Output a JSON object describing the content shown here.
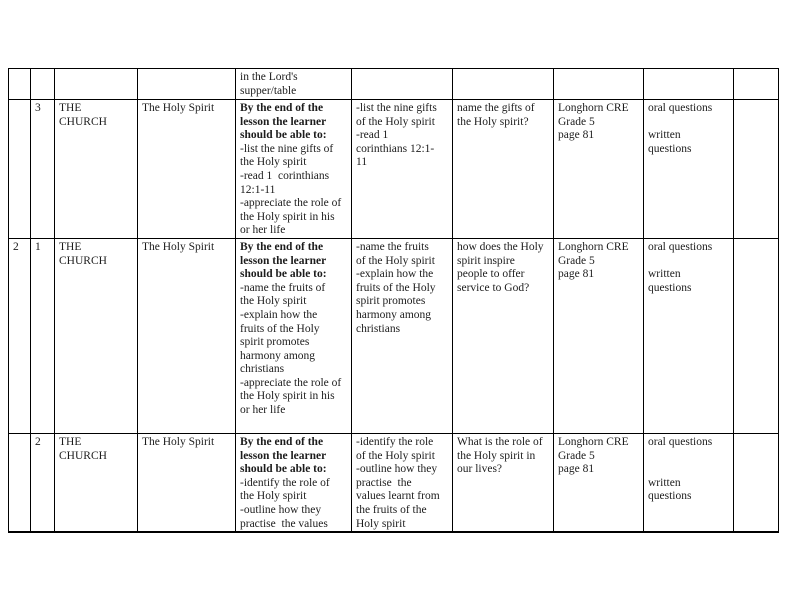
{
  "table": {
    "border_color": "#000000",
    "text_color": "#1c1c1c",
    "background": "#ffffff",
    "rows": [
      {
        "week": "",
        "lesson": "",
        "topic": "",
        "subtopic": "",
        "objectives_bold": "",
        "objectives": "in the Lord's\nsupper/table",
        "activities": "",
        "question": "",
        "references": "",
        "assessment": "",
        "remarks": ""
      },
      {
        "week": "",
        "lesson": "3",
        "topic": "THE\nCHURCH",
        "subtopic": "The Holy Spirit",
        "objectives_bold": "By the end of the\nlesson the learner\nshould be able to:",
        "objectives": "-list the nine gifts of\nthe Holy spirit\n-read 1  corinthians\n12:1-11\n-appreciate the role of\nthe Holy spirit in his\nor her life",
        "activities": "-list the nine gifts\nof the Holy spirit\n-read 1\ncorinthians 12:1-\n11",
        "question": "name the gifts of\nthe Holy spirit?",
        "references": "Longhorn CRE\nGrade 5\npage 81",
        "assessment": "oral questions\n\nwritten\nquestions",
        "remarks": ""
      },
      {
        "week": "2",
        "lesson": "1",
        "topic": "THE\nCHURCH",
        "subtopic": "The Holy Spirit",
        "objectives_bold": "By the end of the\nlesson the learner\nshould be able to:",
        "objectives": "-name the fruits of\nthe Holy spirit\n-explain how the\nfruits of the Holy\nspirit promotes\nharmony among\nchristians\n-appreciate the role of\nthe Holy spirit in his\nor her life",
        "activities": "-name the fruits\nof the Holy spirit\n-explain how the\nfruits of the Holy\nspirit promotes\nharmony among\nchristians",
        "question": "how does the Holy\nspirit inspire\npeople to offer\nservice to God?",
        "references": "Longhorn CRE\nGrade 5\npage 81",
        "assessment": "oral questions\n\nwritten\nquestions",
        "remarks": ""
      },
      {
        "week": "",
        "lesson": "2",
        "topic": "THE\nCHURCH",
        "subtopic": "The Holy Spirit",
        "objectives_bold": "By the end of the\nlesson the learner\nshould be able to:",
        "objectives": "-identify the role of\nthe Holy spirit\n-outline how they\npractise  the values",
        "activities": "-identify the role\nof the Holy spirit\n-outline how they\npractise  the\nvalues learnt from\nthe fruits of the\nHoly spirit",
        "question": "What is the role of\nthe Holy spirit in\nour lives?",
        "references": "Longhorn CRE\nGrade 5\npage 81",
        "assessment": "oral questions\n\n\nwritten\nquestions",
        "remarks": ""
      }
    ]
  }
}
